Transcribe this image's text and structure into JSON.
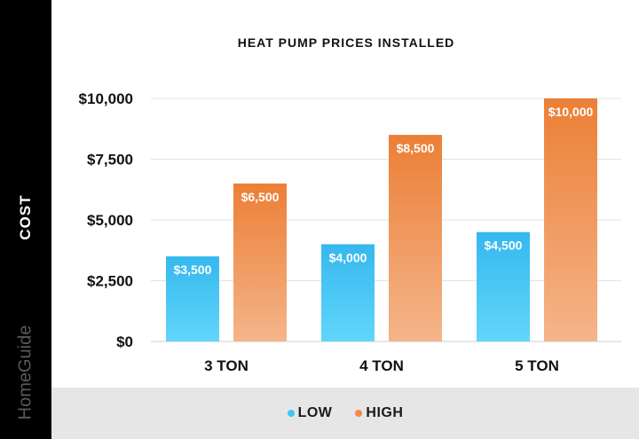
{
  "side_label": "COST",
  "watermark": "HomeGuide",
  "legend": [
    {
      "label": "LOW",
      "color": "#3fc6f4"
    },
    {
      "label": "HIGH",
      "color": "#f08a44"
    }
  ],
  "chart_data": {
    "type": "bar",
    "title": "HEAT PUMP PRICES INSTALLED",
    "xlabel": "",
    "ylabel": "COST",
    "categories": [
      "3 TON",
      "4 TON",
      "5 TON"
    ],
    "series": [
      {
        "name": "LOW",
        "values": [
          3500,
          4000,
          4500
        ],
        "labels": [
          "$3,500",
          "$4,000",
          "$4,500"
        ],
        "color_top": "#35b8ee",
        "color_bottom": "#62d6fb"
      },
      {
        "name": "HIGH",
        "values": [
          6500,
          8500,
          10000
        ],
        "labels": [
          "$6,500",
          "$8,500",
          "$10,000"
        ],
        "color_top": "#ec7f36",
        "color_bottom": "#f4b58a"
      }
    ],
    "yticks": [
      0,
      2500,
      5000,
      7500,
      10000
    ],
    "ytick_labels": [
      "$0",
      "$2,500",
      "$5,000",
      "$7,500",
      "$10,000"
    ],
    "ylim": [
      0,
      10000
    ],
    "grid": true,
    "legend_position": "bottom"
  }
}
